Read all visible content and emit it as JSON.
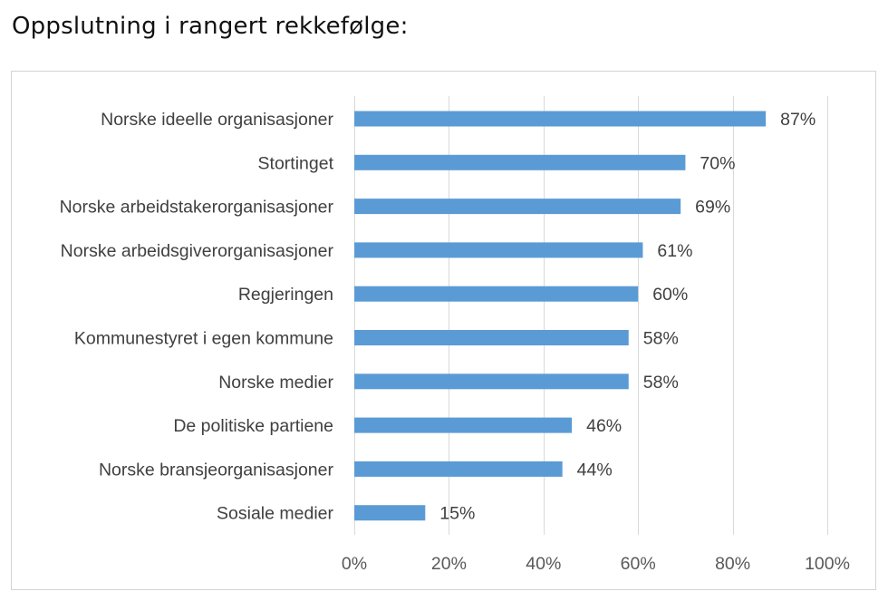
{
  "heading": "Oppslutning i rangert rekkefølge:",
  "chart_data": {
    "type": "bar",
    "orientation": "horizontal",
    "categories": [
      "Norske ideelle organisasjoner",
      "Stortinget",
      "Norske arbeidstakerorganisasjoner",
      "Norske arbeidsgiverorganisasjoner",
      "Regjeringen",
      "Kommunestyret i egen kommune",
      "Norske medier",
      "De politiske partiene",
      "Norske bransjeorganisasjoner",
      "Sosiale medier"
    ],
    "values": [
      87,
      70,
      69,
      61,
      60,
      58,
      58,
      46,
      44,
      15
    ],
    "value_labels": [
      "87%",
      "70%",
      "69%",
      "61%",
      "60%",
      "58%",
      "58%",
      "46%",
      "44%",
      "15%"
    ],
    "xlim": [
      0,
      100
    ],
    "x_ticks": [
      0,
      20,
      40,
      60,
      80,
      100
    ],
    "x_tick_labels": [
      "0%",
      "20%",
      "40%",
      "60%",
      "80%",
      "100%"
    ],
    "grid": "vertical",
    "legend": "none",
    "colors": {
      "bar": "#5b9bd5",
      "grid": "#d9d9d9",
      "frame": "#d4d4d4"
    }
  }
}
